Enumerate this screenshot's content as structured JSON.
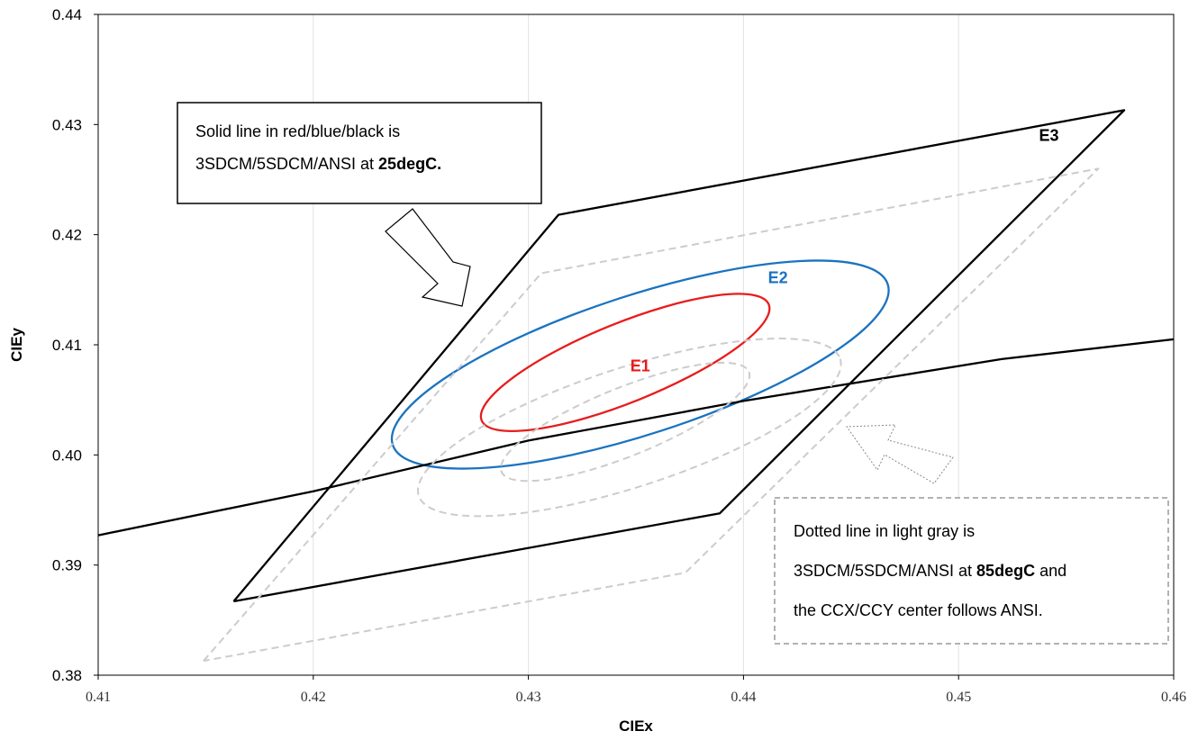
{
  "chart_data": {
    "type": "scatter",
    "title": "",
    "xlabel": "CIEx",
    "ylabel": "CIEy",
    "xlim": [
      0.41,
      0.46
    ],
    "ylim": [
      0.38,
      0.44
    ],
    "xticks": [
      "0.41",
      "0.42",
      "0.43",
      "0.44",
      "0.45",
      "0.46"
    ],
    "yticks": [
      "0.38",
      "0.39",
      "0.40",
      "0.41",
      "0.42",
      "0.43",
      "0.44"
    ],
    "grid": "vertical",
    "series": [
      {
        "name": "E3",
        "color": "#000000",
        "style": "solid",
        "points": [
          [
            0.4163,
            0.3867
          ],
          [
            0.4314,
            0.4218
          ],
          [
            0.4577,
            0.4313
          ],
          [
            0.4389,
            0.3947
          ],
          [
            0.4163,
            0.3867
          ]
        ]
      },
      {
        "name": "E2",
        "color": "#1a73c0",
        "style": "solid",
        "ellipse": {
          "cx": 0.4352,
          "cy": 0.4082,
          "rx": 0.0121,
          "ry": 0.0063,
          "angle_deg": 18
        }
      },
      {
        "name": "E1",
        "color": "#e81c1c",
        "style": "solid",
        "ellipse": {
          "cx": 0.4345,
          "cy": 0.4084,
          "rx": 0.0072,
          "ry": 0.0036,
          "angle_deg": 22
        }
      },
      {
        "name": "",
        "color": "#000000",
        "style": "solid",
        "points": [
          [
            0.41,
            0.3927
          ],
          [
            0.42,
            0.3967
          ],
          [
            0.43,
            0.4013
          ],
          [
            0.44,
            0.4049
          ],
          [
            0.452,
            0.4087
          ],
          [
            0.46,
            0.4105
          ]
        ]
      },
      {
        "name": "",
        "color": "#cccccc",
        "style": "dashed",
        "points": [
          [
            0.4149,
            0.3813
          ],
          [
            0.4306,
            0.4165
          ],
          [
            0.4565,
            0.426
          ],
          [
            0.4373,
            0.3893
          ],
          [
            0.4149,
            0.3813
          ]
        ]
      },
      {
        "name": "",
        "color": "#cccccc",
        "style": "dashed",
        "ellipse": {
          "cx": 0.4347,
          "cy": 0.4025,
          "rx": 0.0103,
          "ry": 0.0054,
          "angle_deg": 18
        }
      },
      {
        "name": "",
        "color": "#cccccc",
        "style": "dashed",
        "ellipse": {
          "cx": 0.4345,
          "cy": 0.403,
          "rx": 0.0062,
          "ry": 0.0031,
          "angle_deg": 22
        }
      }
    ],
    "labels": [
      {
        "text": "E1",
        "x": 0.4352,
        "y": 0.4076,
        "color": "#e81c1c"
      },
      {
        "text": "E2",
        "x": 0.4416,
        "y": 0.4156,
        "color": "#1a73c0"
      },
      {
        "text": "E3",
        "x": 0.4542,
        "y": 0.4285,
        "color": "#000000"
      }
    ],
    "annotations": [
      {
        "lines": [
          [
            {
              "t": "Solid line in red/blue/black is",
              "b": false
            }
          ],
          [
            {
              "t": "3SDCM/5SDCM/ANSI at ",
              "b": false
            },
            {
              "t": "25degC.",
              "b": true
            }
          ]
        ],
        "style": "solid"
      },
      {
        "lines": [
          [
            {
              "t": "Dotted line in light gray is",
              "b": false
            }
          ],
          [
            {
              "t": "3SDCM/5SDCM/ANSI at ",
              "b": false
            },
            {
              "t": "85degC",
              "b": true
            },
            {
              "t": " and",
              "b": false
            }
          ],
          [
            {
              "t": "the CCX/CCY center follows ANSI.",
              "b": false
            }
          ]
        ],
        "style": "dashed"
      }
    ]
  }
}
